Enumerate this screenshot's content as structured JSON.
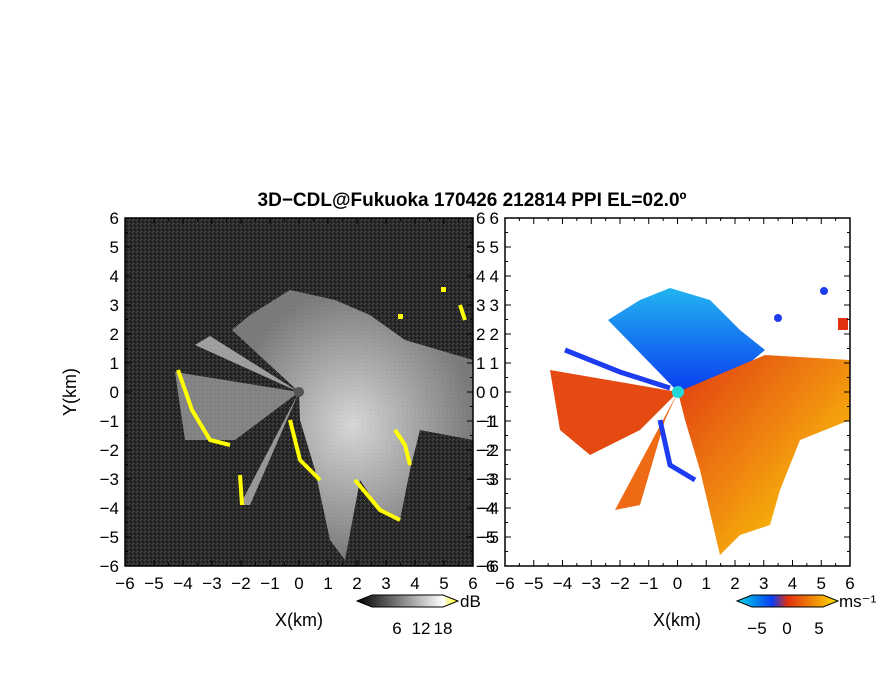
{
  "chart_data": [
    {
      "type": "heatmap",
      "panel": "left",
      "title": "3D−CDL@Fukuoka 170426 212814 PPI EL=02.0º",
      "xlabel": "X(km)",
      "ylabel": "Y(km)",
      "xlim": [
        -6,
        6
      ],
      "ylim": [
        -6,
        6
      ],
      "x_ticks": [
        "−6",
        "−5",
        "−4",
        "−3",
        "−2",
        "−1",
        "0",
        "1",
        "2",
        "3",
        "4",
        "5",
        "6"
      ],
      "y_ticks": [
        "6",
        "5",
        "4",
        "3",
        "2",
        "1",
        "0",
        "−1",
        "−2",
        "−3",
        "−4",
        "−5",
        "−6"
      ],
      "colorbar": {
        "unit": "dB",
        "ticks": [
          "6",
          "12",
          "18"
        ],
        "colors": [
          "#000000",
          "#ffffff",
          "#ffff00"
        ]
      },
      "background_color": "#2a2a2a",
      "highlight_color": "#ffff00"
    },
    {
      "type": "heatmap",
      "panel": "right",
      "xlabel": "X(km)",
      "xlim": [
        -6,
        6
      ],
      "ylim": [
        -6,
        6
      ],
      "x_ticks": [
        "−6",
        "−5",
        "−4",
        "−3",
        "−2",
        "−1",
        "0",
        "1",
        "2",
        "3",
        "4",
        "5",
        "6"
      ],
      "y_ticks": [
        "6",
        "5",
        "4",
        "3",
        "2",
        "1",
        "0",
        "−1",
        "−2",
        "−3",
        "−4",
        "−5",
        "−6"
      ],
      "colorbar": {
        "unit": "ms⁻¹",
        "ticks": [
          "−5",
          "0",
          "5"
        ],
        "colors": [
          "#00d8e8",
          "#0a3cf0",
          "#e23010",
          "#ffe000"
        ]
      }
    }
  ]
}
